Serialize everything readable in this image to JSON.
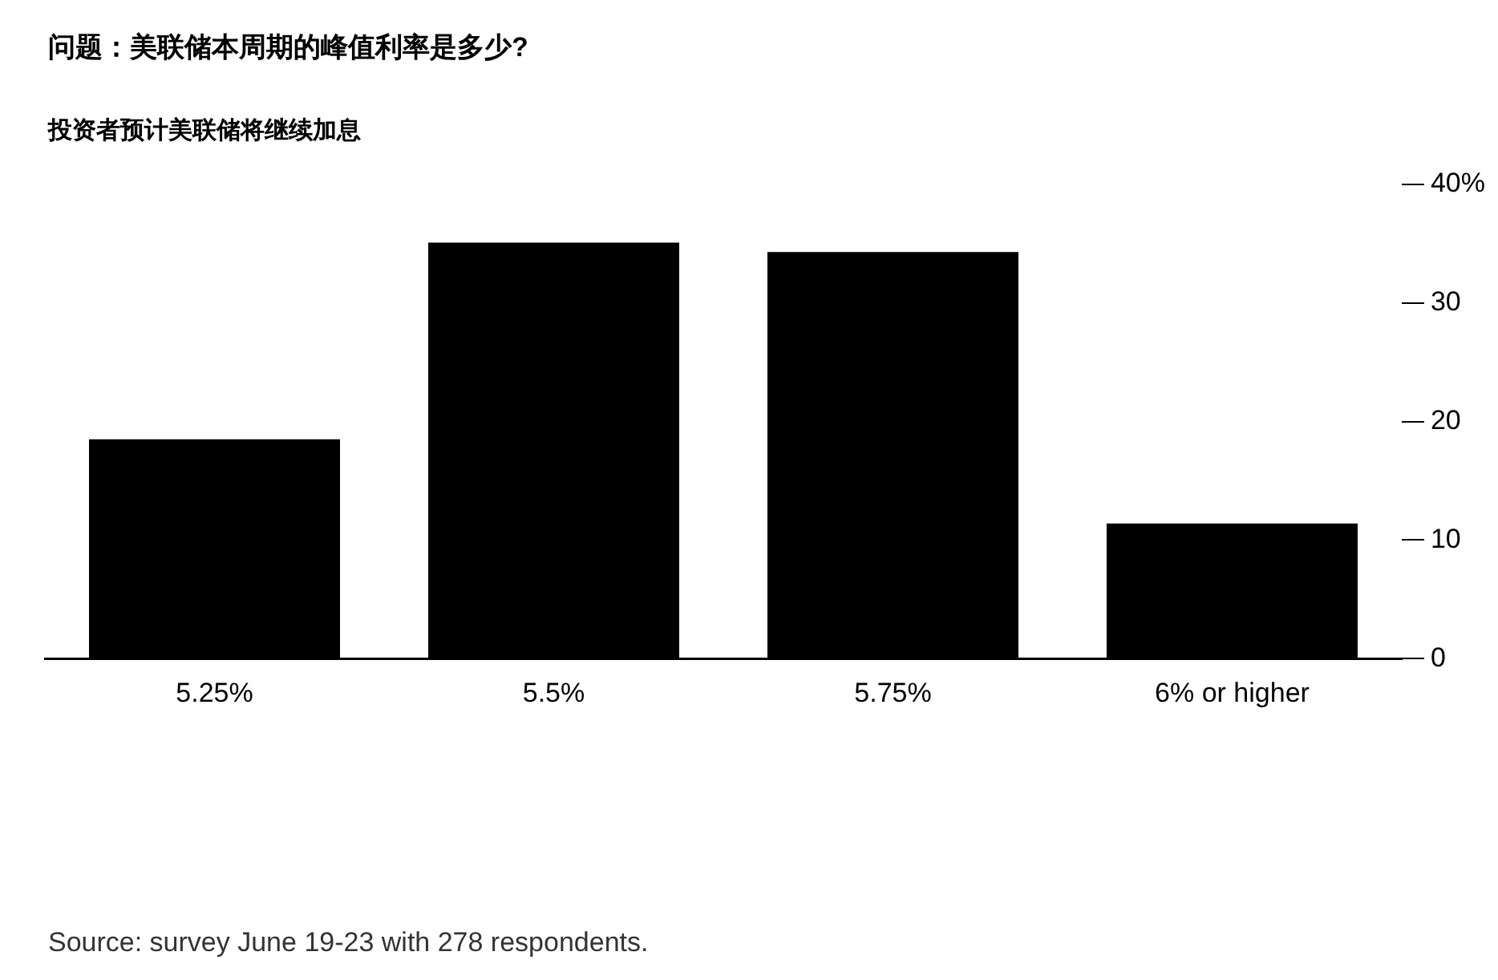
{
  "chart_data": {
    "type": "bar",
    "title": "问题：美联储本周期的峰值利率是多少?",
    "subtitle": "投资者预计美联储将继续加息",
    "categories": [
      "5.25%",
      "5.5%",
      "5.75%",
      "6% or higher"
    ],
    "values": [
      18.5,
      35.1,
      34.3,
      11.4
    ],
    "color": "#000000",
    "ylim": [
      0,
      40
    ],
    "yticks": [
      0,
      10,
      20,
      30,
      {
        "value": 40,
        "label": "40%"
      }
    ],
    "grid": false,
    "legend": false,
    "annotations": [
      "Source: survey June 19-23 with 278 respondents."
    ]
  }
}
